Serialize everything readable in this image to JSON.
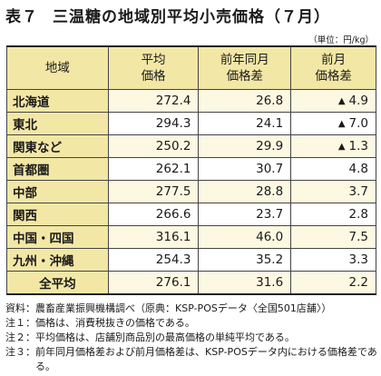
{
  "title": {
    "number": "表７",
    "text": "三温糖の地域別平均小売価格（７月）"
  },
  "unit": "（単位：円/kg）",
  "table": {
    "headers": {
      "region": "地域",
      "avg_l1": "平均",
      "avg_l2": "価格",
      "yoy_l1": "前年同月",
      "yoy_l2": "価格差",
      "mom_l1": "前月",
      "mom_l2": "価格差"
    },
    "rows": [
      {
        "region": "北海道",
        "avg": "272.4",
        "yoy": "26.8",
        "mom": "4.9",
        "mom_sign": "▲"
      },
      {
        "region": "東北",
        "avg": "294.3",
        "yoy": "24.1",
        "mom": "7.0",
        "mom_sign": "▲"
      },
      {
        "region": "関東など",
        "avg": "250.2",
        "yoy": "29.9",
        "mom": "1.3",
        "mom_sign": "▲"
      },
      {
        "region": "首都圏",
        "avg": "262.1",
        "yoy": "30.7",
        "mom": "4.8",
        "mom_sign": ""
      },
      {
        "region": "中部",
        "avg": "277.5",
        "yoy": "28.8",
        "mom": "3.7",
        "mom_sign": ""
      },
      {
        "region": "関西",
        "avg": "266.6",
        "yoy": "23.7",
        "mom": "2.8",
        "mom_sign": ""
      },
      {
        "region": "中国・四国",
        "avg": "316.1",
        "yoy": "46.0",
        "mom": "7.5",
        "mom_sign": ""
      },
      {
        "region": "九州・沖縄",
        "avg": "254.3",
        "yoy": "35.2",
        "mom": "3.3",
        "mom_sign": ""
      },
      {
        "region": "全平均",
        "avg": "276.1",
        "yoy": "31.6",
        "mom": "2.2",
        "mom_sign": ""
      }
    ]
  },
  "notes": [
    {
      "label": "資料：",
      "text": "農畜産業振興機構調べ（原典：KSP-POSデータ〈全国501店舗〉）"
    },
    {
      "label": "注１：",
      "text": "価格は、消費税抜きの価格である。"
    },
    {
      "label": "注２：",
      "text": "平均価格は、店舗別商品別の最高価格の単純平均である。"
    },
    {
      "label": "注３：",
      "text": "前年同月価格差および前月価格差は、KSP-POSデータ内における価格差である。"
    }
  ]
}
